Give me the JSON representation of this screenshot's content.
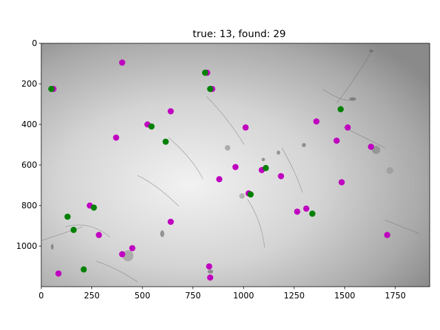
{
  "chart_data": {
    "type": "scatter",
    "title": "true: 13, found: 29",
    "xlabel": "",
    "ylabel": "",
    "xlim": [
      0,
      1920
    ],
    "ylim": [
      1200,
      0
    ],
    "y_inverted": true,
    "x_ticks": [
      0,
      250,
      500,
      750,
      1000,
      1250,
      1500,
      1750
    ],
    "x_tick_labels": [
      "0",
      "250",
      "500",
      "750",
      "1000",
      "1250",
      "1500",
      "1750"
    ],
    "y_ticks": [
      0,
      200,
      400,
      600,
      800,
      1000
    ],
    "y_tick_labels": [
      "0",
      "200",
      "400",
      "600",
      "800",
      "1000"
    ],
    "grid": false,
    "background": "grayscale microscopy image with sperm cells",
    "series": [
      {
        "color": "#bf00bf",
        "points": [
          [
            400,
            95
          ],
          [
            820,
            145
          ],
          [
            60,
            225
          ],
          [
            845,
            225
          ],
          [
            640,
            335
          ],
          [
            525,
            400
          ],
          [
            1010,
            415
          ],
          [
            1360,
            385
          ],
          [
            1515,
            415
          ],
          [
            370,
            465
          ],
          [
            1460,
            480
          ],
          [
            1630,
            510
          ],
          [
            960,
            610
          ],
          [
            1090,
            625
          ],
          [
            1185,
            655
          ],
          [
            880,
            670
          ],
          [
            1485,
            685
          ],
          [
            1025,
            740
          ],
          [
            240,
            800
          ],
          [
            640,
            880
          ],
          [
            1265,
            830
          ],
          [
            1310,
            815
          ],
          [
            285,
            945
          ],
          [
            1710,
            945
          ],
          [
            450,
            1010
          ],
          [
            400,
            1040
          ],
          [
            830,
            1100
          ],
          [
            85,
            1135
          ],
          [
            835,
            1155
          ]
        ]
      },
      {
        "color": "#008000",
        "points": [
          [
            810,
            145
          ],
          [
            50,
            225
          ],
          [
            835,
            225
          ],
          [
            1480,
            325
          ],
          [
            545,
            410
          ],
          [
            615,
            485
          ],
          [
            1110,
            615
          ],
          [
            1035,
            745
          ],
          [
            260,
            810
          ],
          [
            130,
            855
          ],
          [
            160,
            920
          ],
          [
            1340,
            840
          ],
          [
            210,
            1115
          ]
        ]
      }
    ]
  }
}
